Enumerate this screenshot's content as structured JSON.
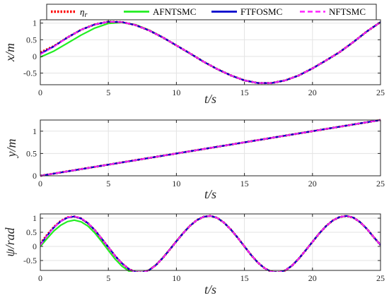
{
  "colors": {
    "eta_r": "#ff0000",
    "AFNTSMC": "#22ee22",
    "FTFOSMC": "#0000cc",
    "NFTSMC": "#ff22ff",
    "grid": "#e3e3e3",
    "axes": "#262626"
  },
  "legend": {
    "placement": "top",
    "entries": [
      {
        "label": "η",
        "sub": "r",
        "series": "eta_r"
      },
      {
        "label": "AFNTSMC",
        "series": "AFNTSMC"
      },
      {
        "label": "FTFOSMC",
        "series": "FTFOSMC"
      },
      {
        "label": "NFTSMC",
        "series": "NFTSMC"
      }
    ]
  },
  "chart_data": [
    {
      "type": "line",
      "xlabel": "t/s",
      "ylabel": "x/m",
      "xlim": [
        0,
        25
      ],
      "ylim": [
        -0.85,
        1.1
      ],
      "xticks": [
        0,
        5,
        10,
        15,
        20,
        25
      ],
      "yticks": [
        -0.5,
        0,
        0.5,
        1
      ],
      "ytick_labels": [
        "-0.5",
        "0",
        "0.5",
        "1"
      ],
      "grid": true,
      "series": [
        {
          "key": "eta_r",
          "x": [
            0,
            1,
            2,
            3,
            4,
            5,
            6,
            7,
            8,
            9,
            10,
            11,
            12,
            13,
            14,
            15,
            16,
            17,
            18,
            19,
            20,
            21,
            22,
            23,
            24,
            25
          ],
          "y": [
            0.12,
            0.31,
            0.57,
            0.8,
            0.96,
            1.04,
            1.03,
            0.94,
            0.78,
            0.57,
            0.33,
            0.09,
            -0.16,
            -0.38,
            -0.57,
            -0.72,
            -0.8,
            -0.8,
            -0.72,
            -0.57,
            -0.36,
            -0.12,
            0.13,
            0.43,
            0.75,
            1.03
          ]
        },
        {
          "key": "AFNTSMC",
          "x": [
            0,
            1,
            2,
            3,
            4,
            5,
            6,
            7,
            8,
            9,
            10,
            11,
            12,
            13,
            14,
            15,
            16,
            17,
            18,
            19,
            20,
            21,
            22,
            23,
            24,
            25
          ],
          "y": [
            -0.02,
            0.16,
            0.4,
            0.64,
            0.85,
            0.99,
            1.02,
            0.95,
            0.79,
            0.57,
            0.33,
            0.09,
            -0.16,
            -0.38,
            -0.57,
            -0.72,
            -0.8,
            -0.8,
            -0.72,
            -0.57,
            -0.36,
            -0.12,
            0.13,
            0.43,
            0.75,
            1.03
          ]
        },
        {
          "key": "FTFOSMC",
          "x": [
            0,
            1,
            2,
            3,
            4,
            5,
            6,
            7,
            8,
            9,
            10,
            11,
            12,
            13,
            14,
            15,
            16,
            17,
            18,
            19,
            20,
            21,
            22,
            23,
            24,
            25
          ],
          "y": [
            0.08,
            0.3,
            0.57,
            0.8,
            0.96,
            1.04,
            1.03,
            0.94,
            0.78,
            0.57,
            0.33,
            0.09,
            -0.16,
            -0.38,
            -0.57,
            -0.72,
            -0.8,
            -0.8,
            -0.72,
            -0.57,
            -0.36,
            -0.12,
            0.13,
            0.43,
            0.75,
            1.03
          ]
        },
        {
          "key": "NFTSMC",
          "x": [
            0,
            1,
            2,
            3,
            4,
            5,
            6,
            7,
            8,
            9,
            10,
            11,
            12,
            13,
            14,
            15,
            16,
            17,
            18,
            19,
            20,
            21,
            22,
            23,
            24,
            25
          ],
          "y": [
            0.06,
            0.29,
            0.57,
            0.8,
            0.96,
            1.04,
            1.03,
            0.94,
            0.78,
            0.57,
            0.33,
            0.09,
            -0.16,
            -0.38,
            -0.57,
            -0.72,
            -0.8,
            -0.8,
            -0.72,
            -0.57,
            -0.36,
            -0.12,
            0.13,
            0.43,
            0.75,
            1.03
          ]
        }
      ]
    },
    {
      "type": "line",
      "xlabel": "t/s",
      "ylabel": "y/m",
      "xlim": [
        0,
        25
      ],
      "ylim": [
        0,
        1.25
      ],
      "xticks": [
        0,
        5,
        10,
        15,
        20,
        25
      ],
      "yticks": [
        0,
        0.5,
        1
      ],
      "ytick_labels": [
        "0",
        "0.5",
        "1"
      ],
      "grid": true,
      "series": [
        {
          "key": "eta_r",
          "x": [
            0,
            25
          ],
          "y": [
            0,
            1.25
          ]
        },
        {
          "key": "AFNTSMC",
          "x": [
            0,
            25
          ],
          "y": [
            0,
            1.25
          ]
        },
        {
          "key": "FTFOSMC",
          "x": [
            0,
            25
          ],
          "y": [
            0,
            1.25
          ]
        },
        {
          "key": "NFTSMC",
          "x": [
            0,
            25
          ],
          "y": [
            0,
            1.25
          ]
        }
      ]
    },
    {
      "type": "line",
      "xlabel": "t/s",
      "ylabel": "ψ/rad",
      "xlim": [
        0,
        25
      ],
      "ylim": [
        -0.85,
        1.15
      ],
      "xticks": [
        0,
        5,
        10,
        15,
        20,
        25
      ],
      "yticks": [
        -0.5,
        0,
        0.5,
        1
      ],
      "ytick_labels": [
        "-0.5",
        "0",
        "0.5",
        "1"
      ],
      "grid": true,
      "series": [
        {
          "key": "eta_r",
          "x": [
            0,
            0.5,
            1,
            1.5,
            2,
            2.5,
            3,
            3.5,
            4,
            4.5,
            5,
            5.5,
            6,
            6.5,
            7,
            7.5,
            8,
            8.5,
            9,
            9.5,
            10,
            10.5,
            11,
            11.5,
            12,
            12.5,
            13,
            13.5,
            14,
            14.5,
            15,
            15.5,
            16,
            16.5,
            17,
            17.5,
            18,
            18.5,
            19,
            19.5,
            20,
            20.5,
            21,
            21.5,
            22,
            22.5,
            23,
            23.5,
            24,
            24.5,
            25
          ],
          "y": [
            0.1,
            0.41,
            0.69,
            0.9,
            1.03,
            1.06,
            0.99,
            0.82,
            0.58,
            0.28,
            -0.03,
            -0.34,
            -0.6,
            -0.8,
            -0.91,
            -0.92,
            -0.84,
            -0.66,
            -0.41,
            -0.12,
            0.18,
            0.47,
            0.73,
            0.93,
            1.05,
            1.08,
            1.01,
            0.84,
            0.6,
            0.31,
            0.0,
            -0.31,
            -0.58,
            -0.78,
            -0.9,
            -0.92,
            -0.85,
            -0.68,
            -0.43,
            -0.14,
            0.16,
            0.46,
            0.72,
            0.92,
            1.04,
            1.08,
            1.02,
            0.86,
            0.62,
            0.33,
            0.05
          ]
        },
        {
          "key": "AFNTSMC",
          "x": [
            0,
            0.5,
            1,
            1.5,
            2,
            2.5,
            3,
            3.5,
            4,
            4.5,
            5,
            5.5,
            6,
            6.5,
            7,
            7.5,
            8,
            8.5,
            9,
            9.5,
            10,
            10.5,
            11,
            11.5,
            12,
            12.5,
            13,
            13.5,
            14,
            14.5,
            15,
            15.5,
            16,
            16.5,
            17,
            17.5,
            18,
            18.5,
            19,
            19.5,
            20,
            20.5,
            21,
            21.5,
            22,
            22.5,
            23,
            23.5,
            24,
            24.5,
            25
          ],
          "y": [
            0.0,
            0.28,
            0.55,
            0.75,
            0.88,
            0.93,
            0.87,
            0.72,
            0.48,
            0.18,
            -0.14,
            -0.45,
            -0.7,
            -0.87,
            -0.95,
            -0.93,
            -0.83,
            -0.65,
            -0.4,
            -0.11,
            0.19,
            0.48,
            0.73,
            0.93,
            1.05,
            1.08,
            1.01,
            0.84,
            0.6,
            0.31,
            0.0,
            -0.31,
            -0.58,
            -0.78,
            -0.9,
            -0.92,
            -0.85,
            -0.68,
            -0.43,
            -0.14,
            0.16,
            0.46,
            0.72,
            0.92,
            1.04,
            1.08,
            1.02,
            0.86,
            0.62,
            0.33,
            0.05
          ]
        },
        {
          "key": "FTFOSMC",
          "x": [
            0,
            0.5,
            1,
            1.5,
            2,
            2.5,
            3,
            3.5,
            4,
            4.5,
            5,
            5.5,
            6,
            6.5,
            7,
            7.5,
            8,
            8.5,
            9,
            9.5,
            10,
            10.5,
            11,
            11.5,
            12,
            12.5,
            13,
            13.5,
            14,
            14.5,
            15,
            15.5,
            16,
            16.5,
            17,
            17.5,
            18,
            18.5,
            19,
            19.5,
            20,
            20.5,
            21,
            21.5,
            22,
            22.5,
            23,
            23.5,
            24,
            24.5,
            25
          ],
          "y": [
            0.06,
            0.38,
            0.67,
            0.89,
            1.02,
            1.06,
            0.99,
            0.82,
            0.58,
            0.28,
            -0.03,
            -0.34,
            -0.6,
            -0.8,
            -0.91,
            -0.92,
            -0.84,
            -0.66,
            -0.41,
            -0.12,
            0.18,
            0.47,
            0.73,
            0.93,
            1.05,
            1.08,
            1.01,
            0.84,
            0.6,
            0.31,
            0.0,
            -0.31,
            -0.58,
            -0.78,
            -0.9,
            -0.92,
            -0.85,
            -0.68,
            -0.43,
            -0.14,
            0.16,
            0.46,
            0.72,
            0.92,
            1.04,
            1.08,
            1.02,
            0.86,
            0.62,
            0.33,
            0.05
          ]
        },
        {
          "key": "NFTSMC",
          "x": [
            0,
            0.5,
            1,
            1.5,
            2,
            2.5,
            3,
            3.5,
            4,
            4.5,
            5,
            5.5,
            6,
            6.5,
            7,
            7.5,
            8,
            8.5,
            9,
            9.5,
            10,
            10.5,
            11,
            11.5,
            12,
            12.5,
            13,
            13.5,
            14,
            14.5,
            15,
            15.5,
            16,
            16.5,
            17,
            17.5,
            18,
            18.5,
            19,
            19.5,
            20,
            20.5,
            21,
            21.5,
            22,
            22.5,
            23,
            23.5,
            24,
            24.5,
            25
          ],
          "y": [
            0.04,
            0.37,
            0.67,
            0.89,
            1.03,
            1.07,
            1.0,
            0.83,
            0.58,
            0.28,
            -0.03,
            -0.34,
            -0.6,
            -0.8,
            -0.91,
            -0.92,
            -0.84,
            -0.66,
            -0.41,
            -0.12,
            0.18,
            0.47,
            0.73,
            0.93,
            1.05,
            1.08,
            1.01,
            0.84,
            0.6,
            0.31,
            0.0,
            -0.31,
            -0.58,
            -0.78,
            -0.9,
            -0.92,
            -0.85,
            -0.68,
            -0.43,
            -0.14,
            0.16,
            0.46,
            0.72,
            0.92,
            1.04,
            1.08,
            1.02,
            0.86,
            0.62,
            0.33,
            0.05
          ]
        }
      ]
    }
  ]
}
